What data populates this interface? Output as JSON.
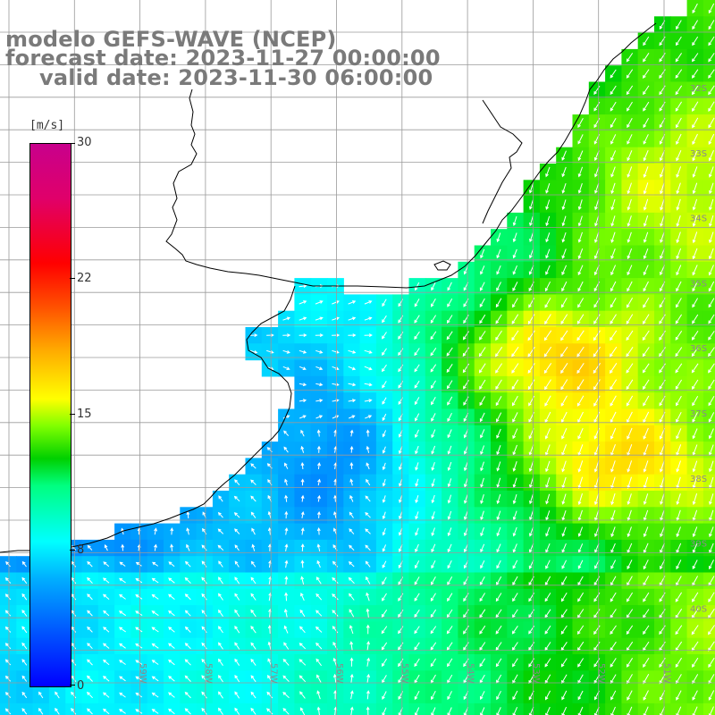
{
  "header": {
    "title": "modelo GEFS-WAVE (NCEP)",
    "forecast": "forecast date: 2023-11-27 00:00:00",
    "valid": "valid date: 2023-11-30 06:00:00"
  },
  "colorbar": {
    "unit": "[m/s]",
    "min": 0,
    "max": 30,
    "tick_labels": [
      "30",
      "22",
      "15",
      "8",
      "0"
    ]
  },
  "map": {
    "lon_labels": [
      "59W",
      "58W",
      "57W",
      "56W",
      "55W",
      "54W",
      "53W",
      "52W",
      "51W"
    ],
    "lat_labels": [
      "32S",
      "33S",
      "34S",
      "35S",
      "36S",
      "37S",
      "38S",
      "39S",
      "40S"
    ],
    "colors": {
      "land": "#ffffff",
      "coast": "#000000",
      "grid": "#9a9a9a",
      "label": "#8a8a8a",
      "arrow": "#ffffff"
    }
  }
}
